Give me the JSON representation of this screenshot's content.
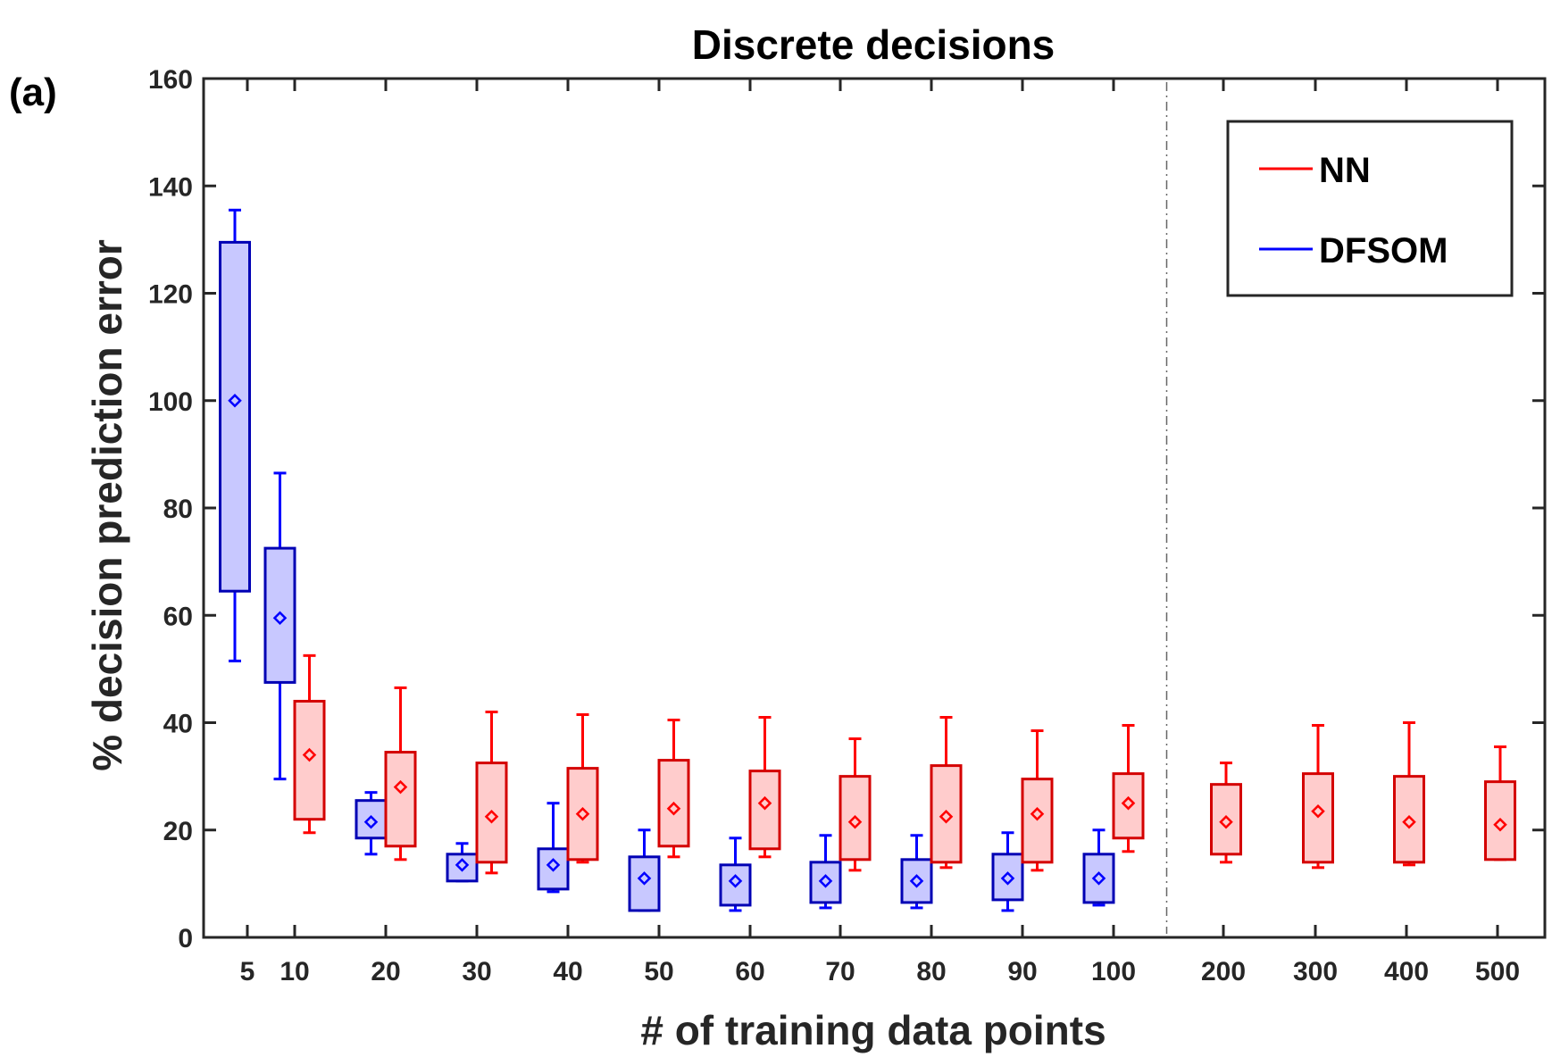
{
  "panel_label": "(a)",
  "chart_data": {
    "type": "boxplot",
    "title": "Discrete decisions",
    "xlabel": "# of training data points",
    "ylabel": "% decision prediction error",
    "ylim": [
      0,
      160
    ],
    "yticks": [
      0,
      20,
      40,
      60,
      80,
      100,
      120,
      140,
      160
    ],
    "categories": [
      "5",
      "10",
      "20",
      "30",
      "40",
      "50",
      "60",
      "70",
      "80",
      "90",
      "100",
      "200",
      "300",
      "400",
      "500"
    ],
    "separator_after": "100",
    "legend": {
      "position": "top-right",
      "entries": [
        "NN",
        "DFSOM"
      ]
    },
    "colors": {
      "NN": {
        "edge": "#d40000",
        "whisker": "#ff0000",
        "fill": "#ffcccc",
        "marker": "#ff0000"
      },
      "DFSOM": {
        "edge": "#0000b4",
        "whisker": "#0000ff",
        "fill": "#c8c8ff",
        "marker": "#0000ff"
      },
      "axis": "#262626"
    },
    "series": [
      {
        "name": "DFSOM",
        "boxes": [
          {
            "x": "5",
            "min": 51.5,
            "q1": 64.5,
            "mean": 100,
            "q3": 129.5,
            "max": 135.5
          },
          {
            "x": "10",
            "min": 29.5,
            "q1": 47.5,
            "mean": 59.5,
            "q3": 72.5,
            "max": 86.5
          },
          {
            "x": "20",
            "min": 15.5,
            "q1": 18.5,
            "mean": 21.5,
            "q3": 25.5,
            "max": 27
          },
          {
            "x": "30",
            "min": 10.5,
            "q1": 10.5,
            "mean": 13.5,
            "q3": 15.5,
            "max": 17.5
          },
          {
            "x": "40",
            "min": 8.5,
            "q1": 9,
            "mean": 13.5,
            "q3": 16.5,
            "max": 25
          },
          {
            "x": "50",
            "min": 5,
            "q1": 5,
            "mean": 11,
            "q3": 15,
            "max": 20
          },
          {
            "x": "60",
            "min": 5,
            "q1": 6,
            "mean": 10.5,
            "q3": 13.5,
            "max": 18.5
          },
          {
            "x": "70",
            "min": 5.5,
            "q1": 6.5,
            "mean": 10.5,
            "q3": 14,
            "max": 19
          },
          {
            "x": "80",
            "min": 5.5,
            "q1": 6.5,
            "mean": 10.5,
            "q3": 14.5,
            "max": 19
          },
          {
            "x": "90",
            "min": 5,
            "q1": 7,
            "mean": 11,
            "q3": 15.5,
            "max": 19.5
          },
          {
            "x": "100",
            "min": 6,
            "q1": 6.5,
            "mean": 11,
            "q3": 15.5,
            "max": 20
          }
        ]
      },
      {
        "name": "NN",
        "boxes": [
          {
            "x": "10",
            "min": 19.5,
            "q1": 22,
            "mean": 34,
            "q3": 44,
            "max": 52.5
          },
          {
            "x": "20",
            "min": 14.5,
            "q1": 17,
            "mean": 28,
            "q3": 34.5,
            "max": 46.5
          },
          {
            "x": "30",
            "min": 12,
            "q1": 14,
            "mean": 22.5,
            "q3": 32.5,
            "max": 42
          },
          {
            "x": "40",
            "min": 14,
            "q1": 14.5,
            "mean": 23,
            "q3": 31.5,
            "max": 41.5
          },
          {
            "x": "50",
            "min": 15,
            "q1": 17,
            "mean": 24,
            "q3": 33,
            "max": 40.5
          },
          {
            "x": "60",
            "min": 15,
            "q1": 16.5,
            "mean": 25,
            "q3": 31,
            "max": 41
          },
          {
            "x": "70",
            "min": 12.5,
            "q1": 14.5,
            "mean": 21.5,
            "q3": 30,
            "max": 37
          },
          {
            "x": "80",
            "min": 13,
            "q1": 14,
            "mean": 22.5,
            "q3": 32,
            "max": 41
          },
          {
            "x": "90",
            "min": 12.5,
            "q1": 14,
            "mean": 23,
            "q3": 29.5,
            "max": 38.5
          },
          {
            "x": "100",
            "min": 16,
            "q1": 18.5,
            "mean": 25,
            "q3": 30.5,
            "max": 39.5
          },
          {
            "x": "200",
            "min": 14,
            "q1": 15.5,
            "mean": 21.5,
            "q3": 28.5,
            "max": 32.5
          },
          {
            "x": "300",
            "min": 13,
            "q1": 14,
            "mean": 23.5,
            "q3": 30.5,
            "max": 39.5
          },
          {
            "x": "400",
            "min": 13.5,
            "q1": 14,
            "mean": 21.5,
            "q3": 30,
            "max": 40
          },
          {
            "x": "500",
            "min": 14.5,
            "q1": 14.5,
            "mean": 21,
            "q3": 29,
            "max": 35.5
          }
        ]
      }
    ]
  }
}
